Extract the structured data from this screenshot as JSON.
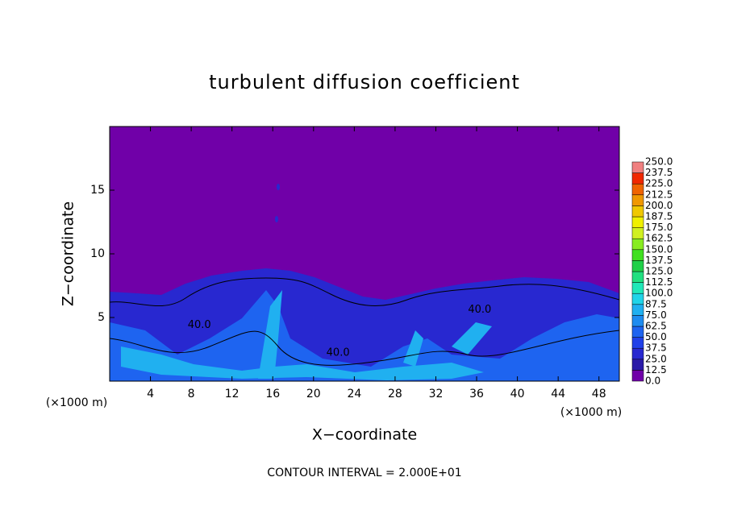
{
  "chart_data": {
    "type": "contour",
    "title": "turbulent diffusion coefficient",
    "xlabel": "X−coordinate",
    "ylabel": "Z−coordinate",
    "xunit_label": "(×1000 m)",
    "yunit_label": "(×1000 m)",
    "note": "CONTOUR INTERVAL = 2.000E+01",
    "xlim": [
      0,
      50
    ],
    "ylim": [
      0,
      20
    ],
    "xticks": [
      4,
      8,
      12,
      16,
      20,
      24,
      28,
      32,
      36,
      40,
      44,
      48
    ],
    "yticks": [
      5,
      10,
      15
    ],
    "colorbar": {
      "levels": [
        {
          "value": 0,
          "label": "0.0"
        },
        {
          "value": 12.5,
          "label": "12.5"
        },
        {
          "value": 25,
          "label": "25.0"
        },
        {
          "value": 37.5,
          "label": "37.5"
        },
        {
          "value": 50,
          "label": "50.0"
        },
        {
          "value": 62.5,
          "label": "62.5"
        },
        {
          "value": 75,
          "label": "75.0"
        },
        {
          "value": 87.5,
          "label": "87.5"
        },
        {
          "value": 100,
          "label": "100.0"
        },
        {
          "value": 112.5,
          "label": "112.5"
        },
        {
          "value": 125,
          "label": "125.0"
        },
        {
          "value": 137.5,
          "label": "137.5"
        },
        {
          "value": 150,
          "label": "150.0"
        },
        {
          "value": 162.5,
          "label": "162.5"
        },
        {
          "value": 175,
          "label": "175.0"
        },
        {
          "value": 187.5,
          "label": "187.5"
        },
        {
          "value": 200,
          "label": "200.0"
        },
        {
          "value": 212.5,
          "label": "212.5"
        },
        {
          "value": 225,
          "label": "225.0"
        },
        {
          "value": 237.5,
          "label": "237.5"
        },
        {
          "value": 250,
          "label": "250.0"
        }
      ],
      "colors": [
        "#7000a8",
        "#2a1aa8",
        "#2828d0",
        "#2040e8",
        "#1e64f0",
        "#1e8cf0",
        "#20b0f0",
        "#20d4e8",
        "#20e8b8",
        "#20e080",
        "#20d048",
        "#40e020",
        "#88ec20",
        "#d0f020",
        "#f0f000",
        "#f0c800",
        "#f09800",
        "#f06400",
        "#f02800",
        "#f08080"
      ]
    },
    "contour_labels": [
      {
        "text": "40.0",
        "x": 36.3,
        "y": 5.6
      },
      {
        "text": "40.0",
        "x": 8.8,
        "y": 4.4
      },
      {
        "text": "40.0",
        "x": 22.4,
        "y": 2.2
      }
    ]
  }
}
